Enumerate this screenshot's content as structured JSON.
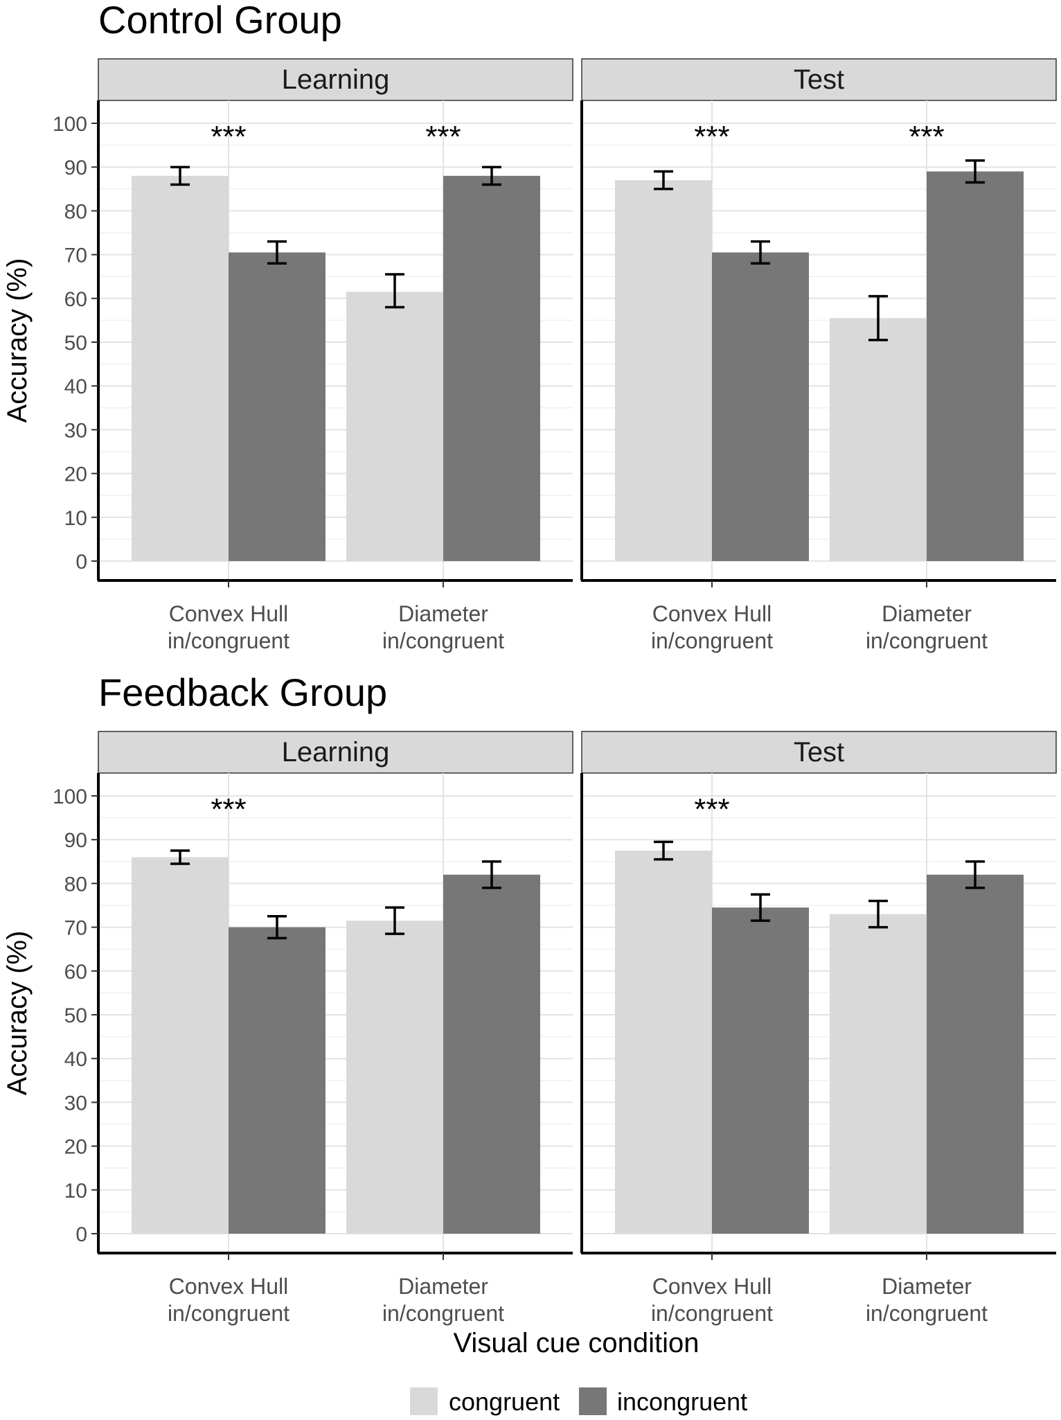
{
  "chart_data": {
    "type": "bar",
    "ylabel": "Accuracy (%)",
    "xlabel": "Visual cue condition",
    "ylim": [
      0,
      100
    ],
    "y_ticks": [
      0,
      10,
      20,
      30,
      40,
      50,
      60,
      70,
      80,
      90,
      100
    ],
    "categories": [
      [
        "Convex Hull",
        "in/congruent"
      ],
      [
        "Diameter",
        "in/congruent"
      ]
    ],
    "legend": {
      "position": "bottom",
      "entries": [
        {
          "name": "congruent",
          "color": "#d9d9d9"
        },
        {
          "name": "incongruent",
          "color": "#777777"
        }
      ]
    },
    "groups": [
      {
        "title": "Control Group",
        "panels": [
          {
            "strip": "Learning",
            "series": [
              {
                "name": "congruent",
                "values": [
                  88.0,
                  61.5
                ],
                "err_low": [
                  86.0,
                  58.0
                ],
                "err_high": [
                  90.0,
                  65.5
                ]
              },
              {
                "name": "incongruent",
                "values": [
                  70.5,
                  88.0
                ],
                "err_low": [
                  68.0,
                  86.0
                ],
                "err_high": [
                  73.0,
                  90.0
                ]
              }
            ],
            "significance": [
              "***",
              "***"
            ]
          },
          {
            "strip": "Test",
            "series": [
              {
                "name": "congruent",
                "values": [
                  87.0,
                  55.5
                ],
                "err_low": [
                  85.0,
                  50.5
                ],
                "err_high": [
                  89.0,
                  60.5
                ]
              },
              {
                "name": "incongruent",
                "values": [
                  70.5,
                  89.0
                ],
                "err_low": [
                  68.0,
                  86.5
                ],
                "err_high": [
                  73.0,
                  91.5
                ]
              }
            ],
            "significance": [
              "***",
              "***"
            ]
          }
        ]
      },
      {
        "title": "Feedback Group",
        "panels": [
          {
            "strip": "Learning",
            "series": [
              {
                "name": "congruent",
                "values": [
                  86.0,
                  71.5
                ],
                "err_low": [
                  84.5,
                  68.5
                ],
                "err_high": [
                  87.5,
                  74.5
                ]
              },
              {
                "name": "incongruent",
                "values": [
                  70.0,
                  82.0
                ],
                "err_low": [
                  67.5,
                  79.0
                ],
                "err_high": [
                  72.5,
                  85.0
                ]
              }
            ],
            "significance": [
              "***",
              ""
            ]
          },
          {
            "strip": "Test",
            "series": [
              {
                "name": "congruent",
                "values": [
                  87.5,
                  73.0
                ],
                "err_low": [
                  85.5,
                  70.0
                ],
                "err_high": [
                  89.5,
                  76.0
                ]
              },
              {
                "name": "incongruent",
                "values": [
                  74.5,
                  82.0
                ],
                "err_low": [
                  71.5,
                  79.0
                ],
                "err_high": [
                  77.5,
                  85.0
                ]
              }
            ],
            "significance": [
              "***",
              ""
            ]
          }
        ]
      }
    ]
  }
}
